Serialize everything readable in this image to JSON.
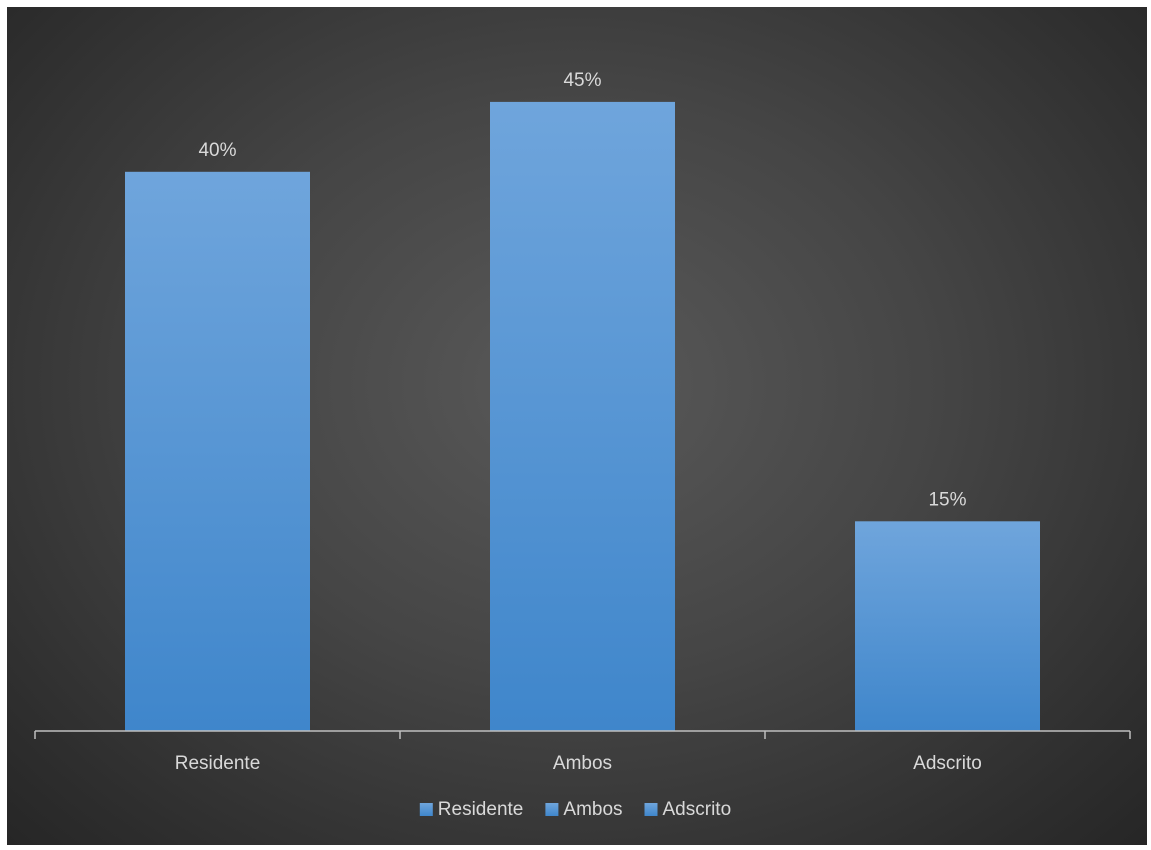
{
  "chart_data": {
    "type": "bar",
    "categories": [
      "Residente",
      "Ambos",
      "Adscrito"
    ],
    "values": [
      40,
      45,
      15
    ],
    "value_labels": [
      "40%",
      "45%",
      "15%"
    ],
    "unit": "%",
    "title": "",
    "xlabel": "",
    "ylabel": "",
    "ylim": [
      0,
      50
    ],
    "grid": false,
    "legend": {
      "position": "bottom",
      "entries": [
        "Residente",
        "Ambos",
        "Adscrito"
      ]
    },
    "colors": {
      "bar_top": "#6fa5dc",
      "bar_bottom": "#3f86cb",
      "axis": "#bfbfbf",
      "text": "#d9d9d9"
    }
  }
}
